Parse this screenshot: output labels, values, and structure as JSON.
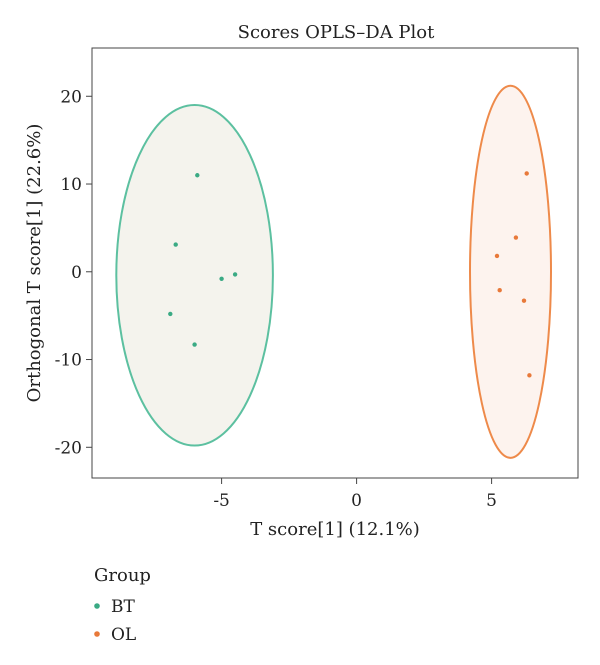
{
  "chart_data": {
    "type": "scatter",
    "title": "Scores OPLS–DA Plot",
    "xlabel": "T score[1] (12.1%)",
    "ylabel": "Orthogonal T score[1] (22.6%)",
    "xlim": [
      -9.8,
      8.2
    ],
    "ylim": [
      -23.5,
      25.5
    ],
    "xticks": [
      -5,
      0,
      5
    ],
    "xtick_labels": [
      "-5",
      "0",
      "5"
    ],
    "yticks": [
      -20,
      -10,
      0,
      10,
      20
    ],
    "ytick_labels": [
      "-20",
      "-10",
      "0",
      "10",
      "20"
    ],
    "grid": false,
    "legend": {
      "title": "Group",
      "placement": "bottom-left"
    },
    "series": [
      {
        "name": "BT",
        "color": "#3aaa84",
        "points": [
          {
            "x": -5.9,
            "y": 11.0
          },
          {
            "x": -6.7,
            "y": 3.1
          },
          {
            "x": -5.0,
            "y": -0.8
          },
          {
            "x": -4.5,
            "y": -0.3
          },
          {
            "x": -6.9,
            "y": -4.8
          },
          {
            "x": -6.0,
            "y": -8.3
          }
        ],
        "ellipse": {
          "cx": -6.0,
          "cy": -0.4,
          "rx": 2.9,
          "ry": 19.4,
          "fill": "#f4f3ed",
          "stroke": "#5cc0a0"
        }
      },
      {
        "name": "OL",
        "color": "#e8793a",
        "points": [
          {
            "x": 6.3,
            "y": 11.2
          },
          {
            "x": 5.9,
            "y": 3.9
          },
          {
            "x": 5.2,
            "y": 1.8
          },
          {
            "x": 5.3,
            "y": -2.1
          },
          {
            "x": 6.2,
            "y": -3.3
          },
          {
            "x": 6.4,
            "y": -11.8
          }
        ],
        "ellipse": {
          "cx": 5.7,
          "cy": 0.0,
          "rx": 1.5,
          "ry": 21.2,
          "fill": "#fdf3ee",
          "stroke": "#ee8a4a"
        }
      }
    ]
  }
}
